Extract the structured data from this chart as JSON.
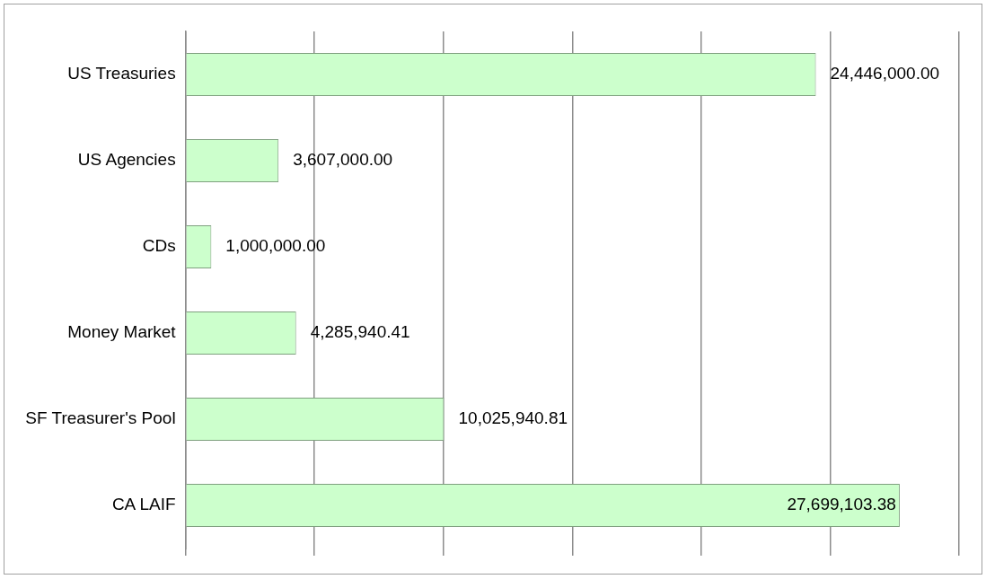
{
  "chart_data": {
    "type": "bar",
    "orientation": "horizontal",
    "categories": [
      "US Treasuries",
      "US Agencies",
      "CDs",
      "Money Market",
      "SF Treasurer's Pool",
      "CA LAIF"
    ],
    "values": [
      24446000,
      3607000,
      1000000,
      4285940.41,
      10025940.81,
      27699103.38
    ],
    "value_labels": [
      "24,446,000.00",
      "3,607,000.00",
      "1,000,000.00",
      "4,285,940.41",
      "10,025,940.81",
      "27,699,103.38"
    ],
    "color": "#ccffcc",
    "xlim": [
      0,
      30000000
    ],
    "xticks": [
      {
        "value": 0,
        "label": null
      },
      {
        "value": 5000000,
        "label": null
      },
      {
        "value": 10000000,
        "label": null
      },
      {
        "value": 15000000,
        "label": null
      },
      {
        "value": 20000000,
        "label": null
      },
      {
        "value": 25000000,
        "label": null
      },
      {
        "value": 30000000,
        "label": null
      }
    ],
    "grid": "x",
    "tick_labels": "y",
    "legend": false
  }
}
